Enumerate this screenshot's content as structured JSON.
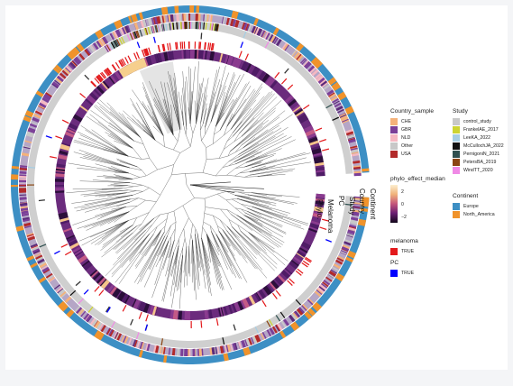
{
  "rings": {
    "continent": "Continent",
    "country": "Country",
    "study": "Study",
    "pc": "PC",
    "melanoma": "Melanoma",
    "phylo": "Phylo."
  },
  "legends": {
    "country_sample": {
      "title": "Country_sample",
      "items": [
        {
          "label": "CHE",
          "color": "#f4b27a"
        },
        {
          "label": "GBR",
          "color": "#7b3f98"
        },
        {
          "label": "NLD",
          "color": "#f5b8c2"
        },
        {
          "label": "Other",
          "color": "#c8c8c8"
        },
        {
          "label": "USA",
          "color": "#b22a2a"
        }
      ]
    },
    "phylo_effect": {
      "title": "phylo_effect_median",
      "ticks": [
        "2",
        "0",
        "−2"
      ]
    },
    "melanoma": {
      "title": "melanoma",
      "items": [
        {
          "label": "TRUE",
          "color": "#e31a1c"
        }
      ]
    },
    "pc": {
      "title": "PC",
      "items": [
        {
          "label": "TRUE",
          "color": "#0000ff"
        }
      ]
    },
    "study": {
      "title": "Study",
      "items": [
        {
          "label": "control_study",
          "color": "#c8c8c8"
        },
        {
          "label": "FrankelAE_2017",
          "color": "#cdd432"
        },
        {
          "label": "LeeKA_2022",
          "color": "#a6cee3"
        },
        {
          "label": "McCullochJA_2022",
          "color": "#111111"
        },
        {
          "label": "PernigoniN_2021",
          "color": "#2f4f4f"
        },
        {
          "label": "PetersBA_2019",
          "color": "#8b4513"
        },
        {
          "label": "WindTT_2020",
          "color": "#f08ae6"
        }
      ]
    },
    "continent": {
      "title": "Continent",
      "items": [
        {
          "label": "Europe",
          "color": "#3d8fc4"
        },
        {
          "label": "North_America",
          "color": "#f0932b"
        }
      ]
    }
  }
}
